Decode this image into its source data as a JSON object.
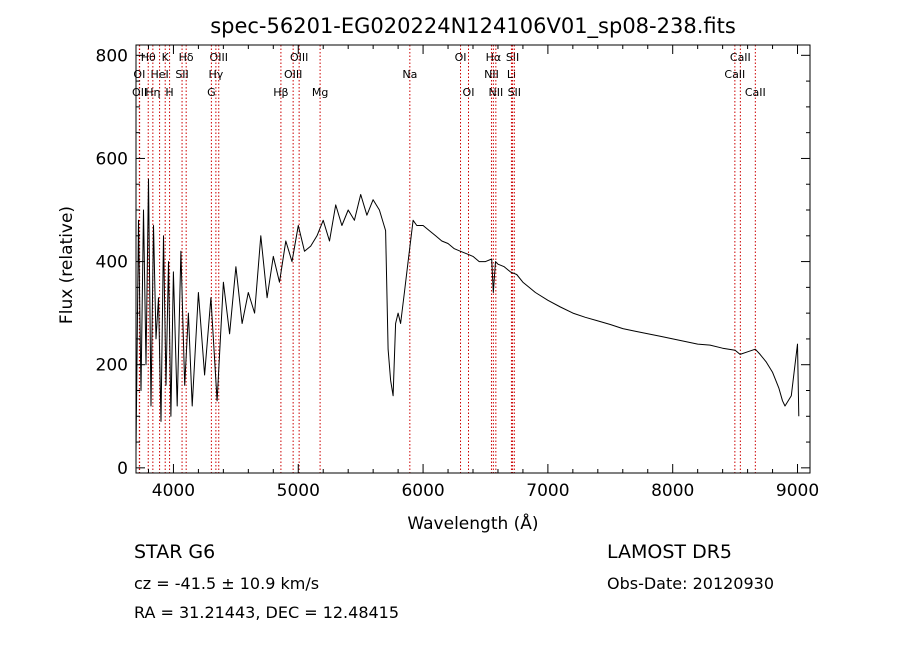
{
  "title": "spec-56201-EG020224N124106V01_sp08-238.fits",
  "info": {
    "object": "STAR    G6",
    "velocity": "cz = -41.5 ± 10.9 km/s",
    "coords": "RA =  31.21443, DEC =  12.48415",
    "survey": "LAMOST  DR5",
    "obs_date": "Obs-Date: 20120930"
  },
  "chart_data": {
    "type": "line",
    "title": "spec-56201-EG020224N124106V01_sp08-238.fits",
    "xlabel": "Wavelength (Å)",
    "ylabel": "Flux (relative)",
    "xlim": [
      3700,
      9100
    ],
    "ylim": [
      -10,
      820
    ],
    "x_ticks": [
      4000,
      5000,
      6000,
      7000,
      8000,
      9000
    ],
    "y_ticks": [
      0,
      200,
      400,
      600,
      800
    ],
    "grid": false,
    "series": [
      {
        "color": "#000000",
        "x": [
          3700,
          3720,
          3740,
          3760,
          3780,
          3800,
          3820,
          3840,
          3860,
          3880,
          3900,
          3920,
          3940,
          3960,
          3980,
          4000,
          4030,
          4060,
          4090,
          4120,
          4150,
          4200,
          4250,
          4300,
          4350,
          4400,
          4450,
          4500,
          4550,
          4600,
          4650,
          4700,
          4750,
          4800,
          4850,
          4900,
          4950,
          5000,
          5050,
          5100,
          5150,
          5200,
          5250,
          5300,
          5350,
          5400,
          5450,
          5500,
          5550,
          5600,
          5650,
          5700,
          5720,
          5740,
          5760,
          5780,
          5800,
          5820,
          5850,
          5880,
          5900,
          5920,
          5950,
          6000,
          6050,
          6100,
          6150,
          6200,
          6250,
          6300,
          6350,
          6400,
          6450,
          6500,
          6550,
          6563,
          6580,
          6600,
          6650,
          6700,
          6750,
          6800,
          6850,
          6900,
          7000,
          7100,
          7200,
          7300,
          7400,
          7500,
          7600,
          7700,
          7800,
          7900,
          8000,
          8100,
          8200,
          8300,
          8400,
          8500,
          8540,
          8600,
          8662,
          8700,
          8750,
          8800,
          8850,
          8880,
          8900,
          8950,
          8980,
          9000,
          9010
        ],
        "y": [
          30,
          480,
          150,
          500,
          200,
          560,
          120,
          470,
          250,
          330,
          90,
          450,
          160,
          400,
          100,
          380,
          120,
          420,
          160,
          300,
          120,
          340,
          180,
          330,
          130,
          360,
          260,
          390,
          280,
          340,
          300,
          450,
          330,
          410,
          360,
          440,
          400,
          470,
          420,
          430,
          450,
          480,
          440,
          510,
          470,
          500,
          480,
          530,
          490,
          520,
          500,
          460,
          230,
          170,
          140,
          280,
          300,
          280,
          340,
          400,
          440,
          480,
          470,
          470,
          460,
          450,
          440,
          435,
          425,
          420,
          415,
          410,
          400,
          400,
          405,
          340,
          400,
          395,
          390,
          380,
          375,
          360,
          350,
          340,
          325,
          312,
          300,
          292,
          285,
          278,
          270,
          265,
          260,
          255,
          250,
          245,
          240,
          238,
          232,
          228,
          220,
          225,
          230,
          220,
          205,
          185,
          155,
          130,
          120,
          140,
          200,
          240,
          100
        ]
      }
    ],
    "spectral_lines": [
      {
        "label": "Hθ",
        "wavelength": 3798,
        "row": 0
      },
      {
        "label": "OI",
        "wavelength": 3727,
        "row": 1
      },
      {
        "label": "OII",
        "wavelength": 3729,
        "row": 2
      },
      {
        "label": "K",
        "wavelength": 3934,
        "row": 0
      },
      {
        "label": "HeI",
        "wavelength": 3889,
        "row": 1
      },
      {
        "label": "Hη",
        "wavelength": 3835,
        "row": 2
      },
      {
        "label": "H",
        "wavelength": 3969,
        "row": 2
      },
      {
        "label": "Hδ",
        "wavelength": 4102,
        "row": 0
      },
      {
        "label": "SII",
        "wavelength": 4069,
        "row": 1
      },
      {
        "label": "OIII",
        "wavelength": 4363,
        "row": 0
      },
      {
        "label": "Hγ",
        "wavelength": 4340,
        "row": 1
      },
      {
        "label": "G",
        "wavelength": 4304,
        "row": 2
      },
      {
        "label": "Hβ",
        "wavelength": 4861,
        "row": 2
      },
      {
        "label": "OIII",
        "wavelength": 5007,
        "row": 0
      },
      {
        "label": "OIII",
        "wavelength": 4959,
        "row": 1
      },
      {
        "label": "Mg",
        "wavelength": 5175,
        "row": 2
      },
      {
        "label": "Na",
        "wavelength": 5894,
        "row": 1
      },
      {
        "label": "OI",
        "wavelength": 6300,
        "row": 0
      },
      {
        "label": "OI",
        "wavelength": 6364,
        "row": 2
      },
      {
        "label": "Hα",
        "wavelength": 6563,
        "row": 0
      },
      {
        "label": "NII",
        "wavelength": 6548,
        "row": 1
      },
      {
        "label": "NII",
        "wavelength": 6583,
        "row": 2
      },
      {
        "label": "SII",
        "wavelength": 6717,
        "row": 0
      },
      {
        "label": "Li",
        "wavelength": 6708,
        "row": 1
      },
      {
        "label": "SII",
        "wavelength": 6731,
        "row": 2
      },
      {
        "label": "CaII",
        "wavelength": 8542,
        "row": 0
      },
      {
        "label": "CaII",
        "wavelength": 8498,
        "row": 1
      },
      {
        "label": "CaII",
        "wavelength": 8662,
        "row": 2
      }
    ],
    "line_color": "#cc0000",
    "axis_color": "#000000"
  }
}
